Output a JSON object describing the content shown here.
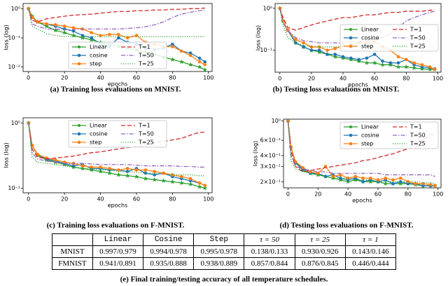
{
  "chart_data": [
    {
      "type": "line",
      "caption": "(a) Training loss evaluations on MNIST.",
      "xlabel": "epochs",
      "ylabel": "loss (log)",
      "ylog": true,
      "x": [
        0,
        2,
        5,
        10,
        15,
        20,
        25,
        30,
        35,
        40,
        45,
        50,
        55,
        60,
        65,
        70,
        75,
        80,
        85,
        90,
        95,
        98
      ],
      "xlim": [
        -3,
        102
      ],
      "xticks": [
        0,
        20,
        40,
        60,
        80,
        100
      ],
      "ylim": [
        0.007,
        1.5
      ],
      "yticks": [
        {
          "value": 0.01,
          "label": "10⁻²"
        },
        {
          "value": 0.1,
          "label": "10⁻¹"
        },
        {
          "value": 1,
          "label": "10⁰"
        }
      ],
      "legend": "lower center",
      "series": [
        {
          "name": "Linear",
          "color": "#2ca02c",
          "linestyle": "solid",
          "marker": "star",
          "values": [
            1,
            0.55,
            0.35,
            0.25,
            0.18,
            0.15,
            0.12,
            0.1,
            0.085,
            0.07,
            0.06,
            0.05,
            0.045,
            0.038,
            0.032,
            0.027,
            0.022,
            0.018,
            0.015,
            0.012,
            0.01,
            0.008
          ]
        },
        {
          "name": "cosine",
          "color": "#1f77b4",
          "linestyle": "solid",
          "marker": "circle",
          "values": [
            1,
            0.5,
            0.35,
            0.3,
            0.25,
            0.2,
            0.17,
            0.12,
            0.1,
            0.06,
            0.05,
            0.1,
            0.07,
            0.06,
            0.045,
            0.04,
            0.045,
            0.06,
            0.035,
            0.03,
            0.02,
            0.015
          ]
        },
        {
          "name": "step",
          "color": "#ff7f0e",
          "linestyle": "solid",
          "marker": "circle",
          "values": [
            1,
            0.5,
            0.35,
            0.3,
            0.28,
            0.25,
            0.22,
            0.2,
            0.15,
            0.12,
            0.13,
            0.13,
            0.1,
            0.12,
            0.07,
            0.06,
            0.05,
            0.05,
            0.035,
            0.025,
            0.015,
            0.012
          ]
        },
        {
          "name": "T=1",
          "color": "#d62728",
          "linestyle": "dashed",
          "marker": "none",
          "values": [
            1,
            0.4,
            0.35,
            0.45,
            0.5,
            0.55,
            0.6,
            0.62,
            0.65,
            0.7,
            0.75,
            0.8,
            0.8,
            0.85,
            0.85,
            0.9,
            0.9,
            0.95,
            0.95,
            1.0,
            1.0,
            1.05
          ]
        },
        {
          "name": "T=50",
          "color": "#9467bd",
          "linestyle": "dashdot",
          "marker": "none",
          "values": [
            1,
            0.3,
            0.25,
            0.2,
            0.2,
            0.19,
            0.19,
            0.2,
            0.2,
            0.2,
            0.2,
            0.2,
            0.21,
            0.22,
            0.24,
            0.28,
            0.35,
            0.5,
            0.65,
            0.75,
            0.85,
            0.9
          ]
        },
        {
          "name": "T=25",
          "color": "#2ca02c",
          "linestyle": "dotted",
          "marker": "none",
          "values": [
            1,
            0.25,
            0.2,
            0.14,
            0.12,
            0.11,
            0.11,
            0.11,
            0.11,
            0.11,
            0.11,
            0.11,
            0.11,
            0.11,
            0.11,
            0.11,
            0.11,
            0.11,
            0.11,
            0.11,
            0.11,
            0.11
          ]
        }
      ]
    },
    {
      "type": "line",
      "caption": "(b) Testing loss evaluations on MNIST.",
      "xlabel": "epochs",
      "ylabel": "loss (log)",
      "ylog": true,
      "x": [
        0,
        2,
        5,
        10,
        15,
        20,
        25,
        30,
        35,
        40,
        45,
        50,
        55,
        60,
        65,
        70,
        75,
        80,
        85,
        90,
        95,
        98
      ],
      "xlim": [
        -3,
        102
      ],
      "xticks": [
        0,
        20,
        40,
        60,
        80,
        100
      ],
      "ylim": [
        0.03,
        1.3
      ],
      "yticks": [
        {
          "value": 0.1,
          "label": "10⁻¹"
        },
        {
          "value": 1,
          "label": "10⁰"
        }
      ],
      "legend": "center right",
      "series": [
        {
          "name": "Linear",
          "color": "#2ca02c",
          "linestyle": "solid",
          "marker": "star",
          "values": [
            1,
            0.5,
            0.3,
            0.15,
            0.12,
            0.1,
            0.09,
            0.08,
            0.07,
            0.065,
            0.06,
            0.055,
            0.05,
            0.05,
            0.045,
            0.045,
            0.04,
            0.04,
            0.038,
            0.036,
            0.035,
            0.035
          ]
        },
        {
          "name": "cosine",
          "color": "#1f77b4",
          "linestyle": "solid",
          "marker": "circle",
          "values": [
            1,
            0.5,
            0.3,
            0.15,
            0.12,
            0.1,
            0.1,
            0.08,
            0.08,
            0.07,
            0.065,
            0.06,
            0.065,
            0.08,
            0.055,
            0.05,
            0.05,
            0.06,
            0.045,
            0.04,
            0.038,
            0.036
          ]
        },
        {
          "name": "step",
          "color": "#ff7f0e",
          "linestyle": "solid",
          "marker": "circle",
          "values": [
            1,
            0.5,
            0.3,
            0.18,
            0.15,
            0.12,
            0.12,
            0.1,
            0.11,
            0.13,
            0.14,
            0.15,
            0.15,
            0.16,
            0.12,
            0.1,
            0.07,
            0.06,
            0.05,
            0.045,
            0.04,
            0.035
          ]
        },
        {
          "name": "T=1",
          "color": "#d62728",
          "linestyle": "dashed",
          "marker": "none",
          "values": [
            1,
            0.6,
            0.35,
            0.3,
            0.35,
            0.4,
            0.45,
            0.5,
            0.55,
            0.6,
            0.6,
            0.65,
            0.7,
            0.7,
            0.75,
            0.8,
            0.8,
            0.85,
            0.85,
            0.85,
            0.9,
            0.9
          ]
        },
        {
          "name": "T=50",
          "color": "#9467bd",
          "linestyle": "dashdot",
          "marker": "none",
          "values": [
            1,
            0.45,
            0.3,
            0.2,
            0.17,
            0.16,
            0.15,
            0.15,
            0.15,
            0.15,
            0.16,
            0.16,
            0.17,
            0.18,
            0.2,
            0.25,
            0.35,
            0.5,
            0.6,
            0.7,
            0.8,
            0.85
          ]
        },
        {
          "name": "T=25",
          "color": "#2ca02c",
          "linestyle": "dotted",
          "marker": "none",
          "values": [
            1,
            0.4,
            0.2,
            0.15,
            0.13,
            0.12,
            0.12,
            0.12,
            0.12,
            0.12,
            0.12,
            0.12,
            0.12,
            0.12,
            0.12,
            0.12,
            0.12,
            0.12,
            0.12,
            0.12,
            0.12,
            0.12
          ]
        }
      ]
    },
    {
      "type": "line",
      "caption": "(c) Training loss evaluations on F-MNIST.",
      "xlabel": "epochs",
      "ylabel": "loss (log)",
      "ylog": true,
      "x": [
        0,
        2,
        5,
        10,
        15,
        20,
        25,
        30,
        35,
        40,
        45,
        50,
        55,
        60,
        65,
        70,
        75,
        80,
        85,
        90,
        95,
        98
      ],
      "xlim": [
        -3,
        102
      ],
      "xticks": [
        0,
        20,
        40,
        60,
        80,
        100
      ],
      "ylim": [
        0.085,
        1.2
      ],
      "yticks": [
        {
          "value": 0.1,
          "label": "10⁻¹"
        },
        {
          "value": 1,
          "label": "10⁰"
        }
      ],
      "legend": "upper center",
      "series": [
        {
          "name": "Linear",
          "color": "#2ca02c",
          "linestyle": "solid",
          "marker": "star",
          "values": [
            1,
            0.45,
            0.32,
            0.27,
            0.25,
            0.23,
            0.21,
            0.2,
            0.19,
            0.18,
            0.17,
            0.16,
            0.155,
            0.15,
            0.14,
            0.135,
            0.13,
            0.125,
            0.12,
            0.115,
            0.105,
            0.1
          ]
        },
        {
          "name": "cosine",
          "color": "#1f77b4",
          "linestyle": "solid",
          "marker": "circle",
          "values": [
            1,
            0.45,
            0.33,
            0.28,
            0.26,
            0.24,
            0.22,
            0.23,
            0.2,
            0.2,
            0.19,
            0.19,
            0.18,
            0.2,
            0.17,
            0.16,
            0.17,
            0.15,
            0.14,
            0.13,
            0.12,
            0.11
          ]
        },
        {
          "name": "step",
          "color": "#ff7f0e",
          "linestyle": "solid",
          "marker": "circle",
          "values": [
            1,
            0.45,
            0.33,
            0.29,
            0.27,
            0.25,
            0.24,
            0.22,
            0.21,
            0.21,
            0.2,
            0.19,
            0.2,
            0.19,
            0.19,
            0.18,
            0.17,
            0.16,
            0.15,
            0.14,
            0.12,
            0.11
          ]
        },
        {
          "name": "T=1",
          "color": "#d62728",
          "linestyle": "dashed",
          "marker": "none",
          "values": [
            1,
            0.4,
            0.3,
            0.28,
            0.29,
            0.3,
            0.31,
            0.33,
            0.35,
            0.36,
            0.38,
            0.4,
            0.42,
            0.43,
            0.45,
            0.5,
            0.52,
            0.55,
            0.58,
            0.65,
            0.72,
            0.72
          ]
        },
        {
          "name": "T=50",
          "color": "#9467bd",
          "linestyle": "dashdot",
          "marker": "none",
          "values": [
            1,
            0.35,
            0.28,
            0.26,
            0.25,
            0.24,
            0.24,
            0.24,
            0.235,
            0.23,
            0.23,
            0.23,
            0.23,
            0.225,
            0.22,
            0.22,
            0.22,
            0.22,
            0.215,
            0.215,
            0.21,
            0.21
          ]
        },
        {
          "name": "T=25",
          "color": "#2ca02c",
          "linestyle": "dotted",
          "marker": "none",
          "values": [
            1,
            0.3,
            0.25,
            0.24,
            0.23,
            0.22,
            0.21,
            0.2,
            0.2,
            0.19,
            0.19,
            0.18,
            0.18,
            0.175,
            0.17,
            0.17,
            0.165,
            0.16,
            0.16,
            0.16,
            0.155,
            0.155
          ]
        }
      ]
    },
    {
      "type": "line",
      "caption": "(d) Testing loss evaluations on F-MNIST.",
      "xlabel": "epochs",
      "ylabel": "loss (log)",
      "ylog": true,
      "x": [
        0,
        2,
        5,
        10,
        15,
        20,
        25,
        30,
        35,
        40,
        45,
        50,
        55,
        60,
        65,
        70,
        75,
        80,
        85,
        90,
        95,
        98
      ],
      "xlim": [
        -3,
        102
      ],
      "xticks": [
        0,
        20,
        40,
        60,
        80,
        100
      ],
      "ylim": [
        0.17,
        1.05
      ],
      "yticks": [
        {
          "value": 0.2,
          "label": "2×10⁻¹"
        },
        {
          "value": 0.3,
          "label": "3×10⁻¹"
        },
        {
          "value": 0.4,
          "label": "4×10⁻¹"
        },
        {
          "value": 0.6,
          "label": "6×10⁻¹"
        },
        {
          "value": 1,
          "label": "10⁰"
        }
      ],
      "legend": "upper right",
      "series": [
        {
          "name": "Linear",
          "color": "#2ca02c",
          "linestyle": "solid",
          "marker": "star",
          "values": [
            1,
            0.5,
            0.33,
            0.27,
            0.25,
            0.24,
            0.23,
            0.22,
            0.21,
            0.2,
            0.21,
            0.2,
            0.2,
            0.2,
            0.19,
            0.19,
            0.19,
            0.19,
            0.185,
            0.18,
            0.18,
            0.18
          ]
        },
        {
          "name": "cosine",
          "color": "#1f77b4",
          "linestyle": "solid",
          "marker": "circle",
          "values": [
            1,
            0.5,
            0.33,
            0.28,
            0.25,
            0.25,
            0.23,
            0.24,
            0.22,
            0.21,
            0.22,
            0.2,
            0.21,
            0.2,
            0.21,
            0.19,
            0.2,
            0.19,
            0.19,
            0.18,
            0.18,
            0.18
          ]
        },
        {
          "name": "step",
          "color": "#ff7f0e",
          "linestyle": "solid",
          "marker": "circle",
          "values": [
            1,
            0.5,
            0.34,
            0.29,
            0.26,
            0.25,
            0.3,
            0.23,
            0.24,
            0.22,
            0.23,
            0.22,
            0.22,
            0.21,
            0.22,
            0.21,
            0.22,
            0.2,
            0.19,
            0.19,
            0.185,
            0.18
          ]
        },
        {
          "name": "T=1",
          "color": "#d62728",
          "linestyle": "dashed",
          "marker": "none",
          "values": [
            1,
            0.45,
            0.3,
            0.26,
            0.27,
            0.28,
            0.29,
            0.3,
            0.31,
            0.32,
            0.33,
            0.35,
            0.36,
            0.38,
            0.4,
            0.42,
            0.45,
            0.48,
            0.5,
            0.6,
            0.7,
            0.7
          ]
        },
        {
          "name": "T=50",
          "color": "#9467bd",
          "linestyle": "dashdot",
          "marker": "none",
          "values": [
            1,
            0.4,
            0.3,
            0.28,
            0.27,
            0.26,
            0.26,
            0.25,
            0.25,
            0.25,
            0.25,
            0.25,
            0.25,
            0.25,
            0.24,
            0.24,
            0.24,
            0.24,
            0.24,
            0.24,
            0.24,
            0.23
          ]
        },
        {
          "name": "T=25",
          "color": "#2ca02c",
          "linestyle": "dotted",
          "marker": "none",
          "values": [
            1,
            0.35,
            0.28,
            0.26,
            0.25,
            0.24,
            0.23,
            0.22,
            0.22,
            0.22,
            0.21,
            0.21,
            0.21,
            0.2,
            0.2,
            0.2,
            0.2,
            0.2,
            0.2,
            0.195,
            0.195,
            0.19
          ]
        }
      ]
    }
  ],
  "table": {
    "columns": [
      "Linear",
      "Cosine",
      "Step",
      "τ = 50",
      "τ = 25",
      "τ = 1"
    ],
    "rows": [
      {
        "label": "MNIST",
        "cells": [
          "0.997/0.979",
          "0.994/0.978",
          "0.995/0.978",
          "0.138/0.133",
          "0.930/0.926",
          "0.143/0.146"
        ]
      },
      {
        "label": "FMNIST",
        "cells": [
          "0.941/0.891",
          "0.935/0.888",
          "0.938/0.889",
          "0.857/0.844",
          "0.876/0.845",
          "0.446/0.444"
        ]
      }
    ],
    "caption": "(e) Final training/testing accuracy of all temperature schedules."
  }
}
